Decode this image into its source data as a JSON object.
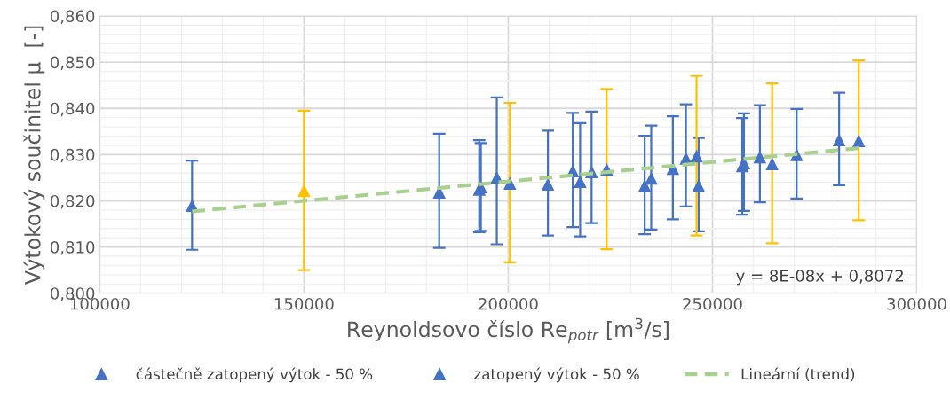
{
  "chart_data": {
    "type": "scatter",
    "xlabel": "Reynoldsovo číslo Re$_{potr}$ [m$^{3}$/s]",
    "ylabel": "Výtokový součinitel μ  [-]",
    "xlim": [
      100000,
      300000
    ],
    "xticks": [
      100000,
      150000,
      200000,
      250000,
      300000
    ],
    "ylim": [
      0.8,
      0.86
    ],
    "yticks": [
      {
        "value": 0.8,
        "label": "0,800"
      },
      {
        "value": 0.81,
        "label": "0,810"
      },
      {
        "value": 0.82,
        "label": "0,820"
      },
      {
        "value": 0.83,
        "label": "0,830"
      },
      {
        "value": 0.84,
        "label": "0,840"
      },
      {
        "value": 0.85,
        "label": "0,850"
      },
      {
        "value": 0.86,
        "label": "0,860"
      }
    ],
    "grid": true,
    "legend": "bottom",
    "marker": "triangle",
    "annotations": [
      "y = 8E-08x + 0,8072"
    ],
    "series": [
      {
        "name": "částečně zatopený výtok - 50 %",
        "color": "#4472c4",
        "x": [
          122600,
          183100,
          192900,
          193300,
          197200,
          209700,
          215800,
          217600,
          220400,
          233400,
          235000,
          240300,
          243500,
          246600,
          257300,
          257700,
          261600,
          270600,
          281000
        ],
        "values": [
          0.819,
          0.8219,
          0.8225,
          0.823,
          0.8251,
          0.8236,
          0.8265,
          0.8242,
          0.8263,
          0.8233,
          0.8249,
          0.827,
          0.8292,
          0.8233,
          0.8276,
          0.8282,
          0.8295,
          0.83,
          0.8332
        ],
        "errors": [
          [
            0.8094,
            0.8287
          ],
          [
            0.8098,
            0.8345
          ],
          [
            0.8132,
            0.8331
          ],
          [
            0.8135,
            0.8325
          ],
          [
            0.8106,
            0.8424
          ],
          [
            0.8125,
            0.8352
          ],
          [
            0.8143,
            0.839
          ],
          [
            0.8123,
            0.8368
          ],
          [
            0.8152,
            0.8393
          ],
          [
            0.8128,
            0.8341
          ],
          [
            0.8138,
            0.8363
          ],
          [
            0.816,
            0.8383
          ],
          [
            0.8188,
            0.8409
          ],
          [
            0.8134,
            0.8336
          ],
          [
            0.817,
            0.8379
          ],
          [
            0.8178,
            0.8389
          ],
          [
            0.8197,
            0.8407
          ],
          [
            0.8205,
            0.8399
          ],
          [
            0.8234,
            0.8434
          ]
        ]
      },
      {
        "name": "zatopený výtok - 50 %",
        "color": "#ffc000",
        "colors": [
          "#ffc000",
          "#4472c4",
          "#4472c4",
          "#4472c4",
          "#4472c4",
          "#4472c4"
        ],
        "x": [
          150000,
          200400,
          224100,
          246100,
          264600,
          285800
        ],
        "values": [
          0.8222,
          0.8238,
          0.8268,
          0.8297,
          0.828,
          0.833
        ],
        "errors": [
          [
            0.805,
            0.8395
          ],
          [
            0.8067,
            0.8412
          ],
          [
            0.8095,
            0.8442
          ],
          [
            0.8125,
            0.847
          ],
          [
            0.8108,
            0.8454
          ],
          [
            0.8158,
            0.8504
          ]
        ]
      },
      {
        "name": "Lineární (trend)",
        "type": "line",
        "line_style": "dashed",
        "marker": "none",
        "color": "#a9d18e",
        "x": [
          122600,
          285800
        ],
        "values": [
          0.8177,
          0.8314
        ]
      }
    ]
  }
}
